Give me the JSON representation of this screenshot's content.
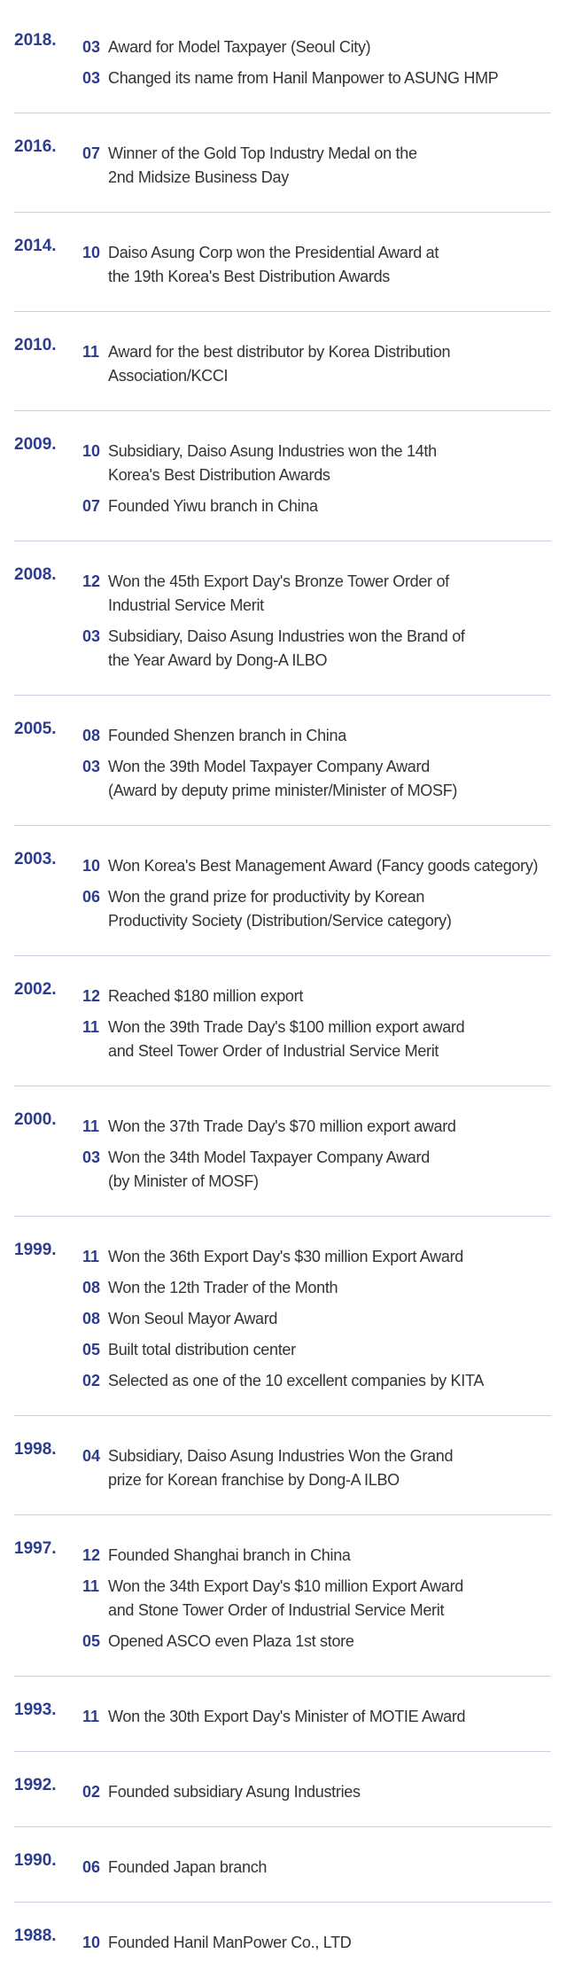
{
  "timeline": [
    {
      "year": "2018.",
      "events": [
        {
          "month": "03",
          "lines": [
            "Award for Model Taxpayer (Seoul City)"
          ]
        },
        {
          "month": "03",
          "lines": [
            "Changed its name from Hanil Manpower to ASUNG HMP"
          ]
        }
      ]
    },
    {
      "year": "2016.",
      "events": [
        {
          "month": "07",
          "lines": [
            "Winner of the Gold Top Industry Medal on the",
            "2nd Midsize Business Day"
          ]
        }
      ]
    },
    {
      "year": "2014.",
      "events": [
        {
          "month": "10",
          "lines": [
            "Daiso Asung Corp won the Presidential Award at",
            "the 19th  Korea's Best Distribution Awards"
          ]
        }
      ]
    },
    {
      "year": "2010.",
      "events": [
        {
          "month": "11",
          "lines": [
            "Award for the best distributor by Korea Distribution",
            "Association/KCCI"
          ]
        }
      ]
    },
    {
      "year": "2009.",
      "events": [
        {
          "month": "10",
          "lines": [
            "Subsidiary, Daiso Asung Industries won the 14th",
            "Korea's Best Distribution Awards"
          ]
        },
        {
          "month": "07",
          "lines": [
            "Founded Yiwu branch in China"
          ]
        }
      ]
    },
    {
      "year": "2008.",
      "events": [
        {
          "month": "12",
          "lines": [
            "Won the 45th Export Day's Bronze Tower Order of",
            "Industrial Service Merit"
          ]
        },
        {
          "month": "03",
          "lines": [
            "Subsidiary, Daiso Asung Industries won the Brand of",
            "the Year Award by Dong-A ILBO"
          ]
        }
      ]
    },
    {
      "year": "2005.",
      "events": [
        {
          "month": "08",
          "lines": [
            "Founded Shenzen branch in China"
          ]
        },
        {
          "month": "03",
          "lines": [
            "Won the 39th Model Taxpayer Company Award",
            "(Award by deputy prime minister/Minister of MOSF)"
          ]
        }
      ]
    },
    {
      "year": "2003.",
      "events": [
        {
          "month": "10",
          "lines": [
            "Won Korea's Best Management Award (Fancy goods category)"
          ]
        },
        {
          "month": "06",
          "lines": [
            "Won the grand prize for productivity by Korean",
            "Productivity Society (Distribution/Service category)"
          ]
        }
      ]
    },
    {
      "year": "2002.",
      "events": [
        {
          "month": "12",
          "lines": [
            "Reached $180 million export"
          ]
        },
        {
          "month": "11",
          "lines": [
            "Won the 39th Trade Day's $100 million export award",
            "and Steel Tower Order of Industrial Service Merit"
          ]
        }
      ]
    },
    {
      "year": "2000.",
      "events": [
        {
          "month": "11",
          "lines": [
            "Won the 37th Trade Day's $70 million export award"
          ]
        },
        {
          "month": "03",
          "lines": [
            "Won the 34th Model Taxpayer Company Award",
            "(by Minister of MOSF)"
          ]
        }
      ]
    },
    {
      "year": "1999.",
      "events": [
        {
          "month": "11",
          "lines": [
            "Won the 36th Export Day's $30 million Export Award"
          ]
        },
        {
          "month": "08",
          "lines": [
            "Won the 12th Trader of the Month"
          ]
        },
        {
          "month": "08",
          "lines": [
            "Won Seoul Mayor Award"
          ]
        },
        {
          "month": "05",
          "lines": [
            "Built total distribution center"
          ]
        },
        {
          "month": "02",
          "lines": [
            "Selected as one of the 10 excellent companies by KITA"
          ]
        }
      ]
    },
    {
      "year": "1998.",
      "events": [
        {
          "month": "04",
          "lines": [
            "Subsidiary, Daiso Asung Industries Won the Grand",
            "prize for Korean franchise by Dong-A ILBO"
          ]
        }
      ]
    },
    {
      "year": "1997.",
      "events": [
        {
          "month": "12",
          "lines": [
            "Founded Shanghai branch in China"
          ]
        },
        {
          "month": "11",
          "lines": [
            "Won the 34th Export Day's $10 million Export Award",
            "and Stone Tower Order of Industrial Service Merit"
          ]
        },
        {
          "month": "05",
          "lines": [
            "Opened ASCO even Plaza 1st store"
          ]
        }
      ]
    },
    {
      "year": "1993.",
      "events": [
        {
          "month": "11",
          "lines": [
            "Won the 30th Export Day's Minister of MOTIE Award"
          ]
        }
      ]
    },
    {
      "year": "1992.",
      "events": [
        {
          "month": "02",
          "lines": [
            "Founded subsidiary Asung Industries"
          ]
        }
      ]
    },
    {
      "year": "1990.",
      "events": [
        {
          "month": "06",
          "lines": [
            "Founded Japan branch"
          ]
        }
      ]
    },
    {
      "year": "1988.",
      "events": [
        {
          "month": "10",
          "lines": [
            "Founded Hanil ManPower Co., LTD"
          ]
        }
      ]
    }
  ]
}
